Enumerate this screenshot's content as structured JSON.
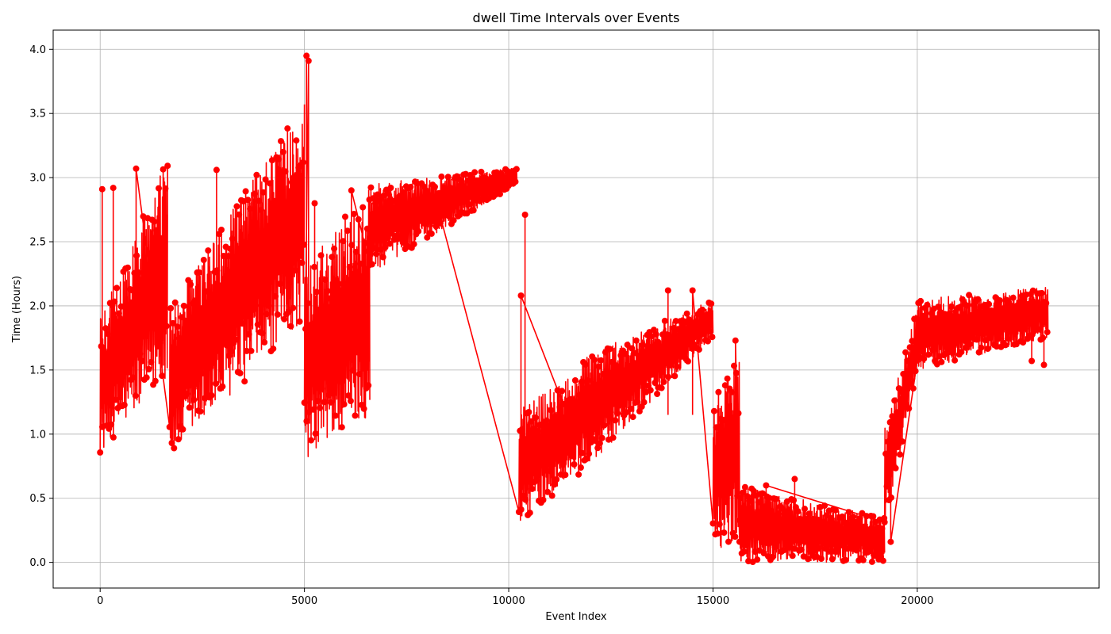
{
  "chart_data": {
    "type": "line",
    "title": "dwell Time Intervals over Events",
    "xlabel": "Event Index",
    "ylabel": "Time (Hours)",
    "xlim": [
      -1150,
      24450
    ],
    "ylim": [
      -0.2,
      4.15
    ],
    "xticks": [
      0,
      5000,
      10000,
      15000,
      20000
    ],
    "yticks": [
      0.0,
      0.5,
      1.0,
      1.5,
      2.0,
      2.5,
      3.0,
      3.5,
      4.0
    ],
    "xtick_labels": [
      "0",
      "5000",
      "10000",
      "15000",
      "20000"
    ],
    "ytick_labels": [
      "0.0",
      "0.5",
      "1.0",
      "1.5",
      "2.0",
      "2.5",
      "3.0",
      "3.5",
      "4.0"
    ],
    "grid": true,
    "marker": "circle",
    "series": [
      {
        "color": "#ff0000",
        "n_points": 23200,
        "segments": [
          {
            "x": [
              0,
              1650
            ],
            "low": [
              0.85,
              1.45
            ],
            "high": [
              1.9,
              3.15
            ],
            "outliers": [
              [
                50,
                2.91
              ],
              [
                320,
                2.92
              ],
              [
                880,
                3.07
              ]
            ]
          },
          {
            "x": [
              1700,
              5000
            ],
            "low": [
              0.8,
              1.9
            ],
            "high": [
              2.0,
              3.6
            ],
            "outliers": [
              [
                2850,
                3.06
              ],
              [
                5050,
                3.95
              ],
              [
                5100,
                3.91
              ]
            ]
          },
          {
            "x": [
              5000,
              6600
            ],
            "low": [
              0.8,
              1.15
            ],
            "high": [
              2.3,
              2.95
            ],
            "outliers": [
              [
                5250,
                2.8
              ],
              [
                6150,
                2.9
              ]
            ]
          },
          {
            "x": [
              6600,
              10200
            ],
            "low": [
              2.25,
              2.95
            ],
            "high": [
              2.95,
              3.08
            ],
            "outliers": [
              [
                7450,
                2.68
              ],
              [
                8300,
                2.73
              ]
            ]
          },
          {
            "x": [
              10250,
              11800
            ],
            "low": [
              0.3,
              0.7
            ],
            "high": [
              1.2,
              1.5
            ],
            "outliers": [
              [
                10400,
                2.71
              ],
              [
                10300,
                2.08
              ]
            ]
          },
          {
            "x": [
              11800,
              15000
            ],
            "low": [
              0.7,
              1.75
            ],
            "high": [
              1.6,
              2.05
            ],
            "outliers": [
              [
                12600,
                1.34
              ],
              [
                13900,
                2.12
              ],
              [
                14500,
                2.12
              ]
            ]
          },
          {
            "x": [
              15000,
              15650
            ],
            "low": [
              0.1,
              0.15
            ],
            "high": [
              1.25,
              1.65
            ],
            "outliers": [
              [
                15550,
                1.73
              ]
            ]
          },
          {
            "x": [
              15650,
              19200
            ],
            "low": [
              0.0,
              0.0
            ],
            "high": [
              0.6,
              0.35
            ],
            "outliers": [
              [
                17000,
                0.65
              ],
              [
                16300,
                0.6
              ]
            ]
          },
          {
            "x": [
              19200,
              20000
            ],
            "low": [
              0.25,
              1.5
            ],
            "high": [
              1.05,
              2.0
            ],
            "outliers": [
              [
                19350,
                0.16
              ]
            ]
          },
          {
            "x": [
              20000,
              23200
            ],
            "low": [
              1.5,
              1.75
            ],
            "high": [
              2.05,
              2.15
            ],
            "outliers": [
              [
                22800,
                1.57
              ],
              [
                23100,
                1.54
              ]
            ]
          }
        ]
      }
    ]
  }
}
